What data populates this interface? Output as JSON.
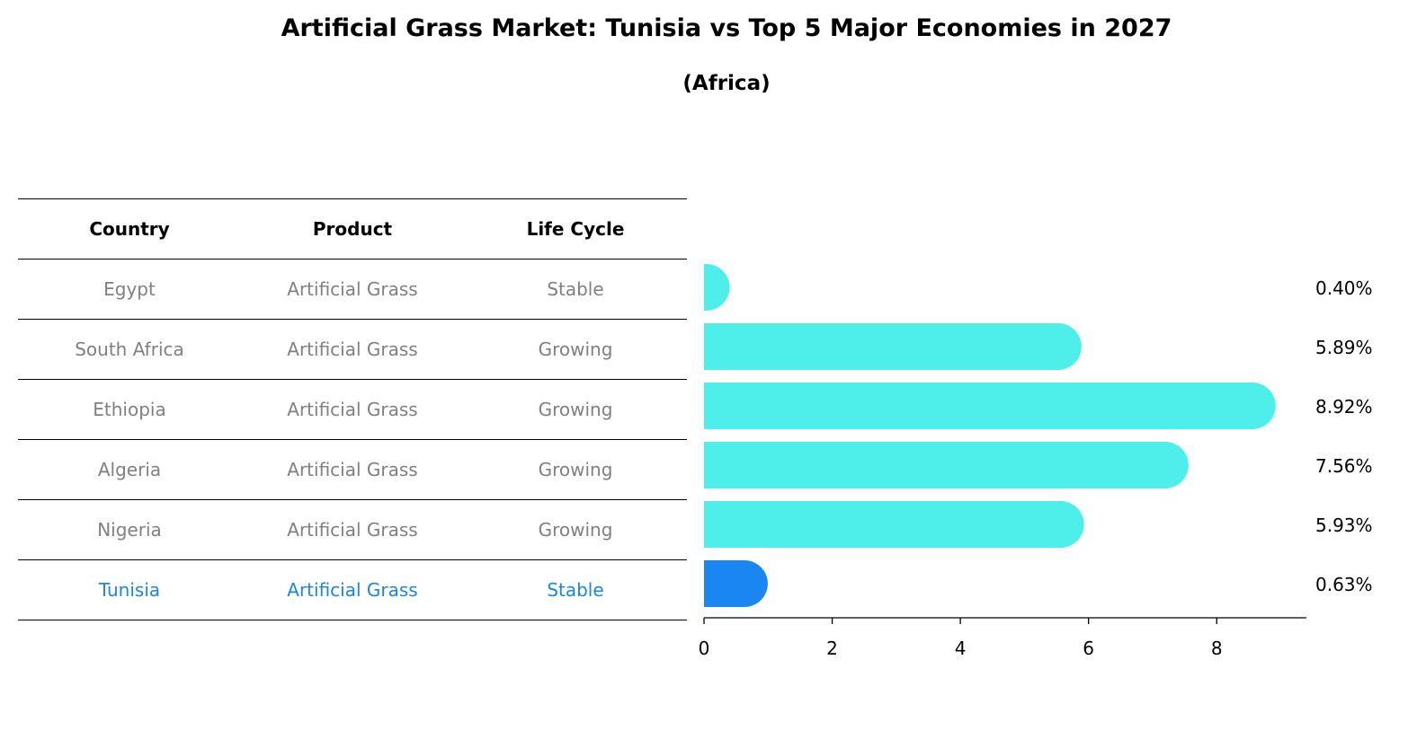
{
  "title": "Artificial Grass Market: Tunisia vs Top 5 Major Economies in 2027",
  "subtitle": "(Africa)",
  "table": {
    "headers": [
      "Country",
      "Product",
      "Life Cycle"
    ],
    "rows": [
      {
        "country": "Egypt",
        "product": "Artificial Grass",
        "life_cycle": "Stable"
      },
      {
        "country": "South Africa",
        "product": "Artificial Grass",
        "life_cycle": "Growing"
      },
      {
        "country": "Ethiopia",
        "product": "Artificial Grass",
        "life_cycle": "Growing"
      },
      {
        "country": "Algeria",
        "product": "Artificial Grass",
        "life_cycle": "Growing"
      },
      {
        "country": "Nigeria",
        "product": "Artificial Grass",
        "life_cycle": "Growing"
      },
      {
        "country": "Tunisia",
        "product": "Artificial Grass",
        "life_cycle": "Stable"
      }
    ]
  },
  "chart_data": {
    "type": "bar",
    "orientation": "horizontal",
    "categories": [
      "Egypt",
      "South Africa",
      "Ethiopia",
      "Algeria",
      "Nigeria",
      "Tunisia"
    ],
    "values": [
      0.4,
      5.89,
      8.92,
      7.56,
      5.93,
      0.63
    ],
    "value_labels": [
      "0.40%",
      "5.89%",
      "8.92%",
      "7.56%",
      "5.93%",
      "0.63%"
    ],
    "highlight": "Tunisia",
    "xlim": [
      0,
      9.4
    ],
    "xticks": [
      0,
      2,
      4,
      6,
      8
    ],
    "grid": false,
    "colors": {
      "bar": "#4eeeea",
      "highlight": "#1a86f2",
      "highlight_text": "#1a86e2",
      "muted_text": "#808080",
      "axis": "#000000"
    }
  }
}
